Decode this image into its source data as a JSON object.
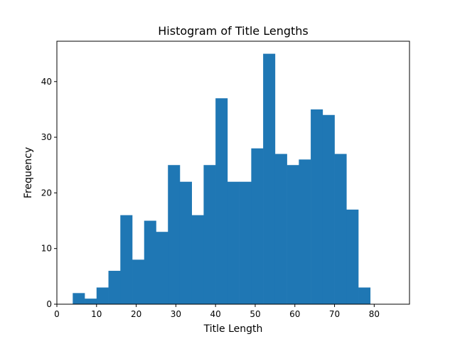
{
  "chart_data": {
    "type": "bar",
    "title": "Histogram of Title Lengths",
    "xlabel": "Title Length",
    "ylabel": "Frequency",
    "xlim": [
      0,
      88.9
    ],
    "ylim": [
      0,
      47.25
    ],
    "x_ticks": [
      0,
      10,
      20,
      30,
      40,
      50,
      60,
      70,
      80
    ],
    "y_ticks": [
      0,
      10,
      20,
      30,
      40
    ],
    "bar_color": "#1f77b4",
    "bins": [
      {
        "x0": 4.0,
        "x1": 7.0,
        "value": 2
      },
      {
        "x0": 7.0,
        "x1": 10.0,
        "value": 1
      },
      {
        "x0": 10.0,
        "x1": 13.0,
        "value": 3
      },
      {
        "x0": 13.0,
        "x1": 16.0,
        "value": 6
      },
      {
        "x0": 16.0,
        "x1": 19.0,
        "value": 16
      },
      {
        "x0": 19.0,
        "x1": 22.0,
        "value": 8
      },
      {
        "x0": 22.0,
        "x1": 25.0,
        "value": 15
      },
      {
        "x0": 25.0,
        "x1": 28.0,
        "value": 13
      },
      {
        "x0": 28.0,
        "x1": 31.0,
        "value": 25
      },
      {
        "x0": 31.0,
        "x1": 34.0,
        "value": 22
      },
      {
        "x0": 34.0,
        "x1": 37.0,
        "value": 16
      },
      {
        "x0": 37.0,
        "x1": 40.0,
        "value": 25
      },
      {
        "x0": 40.0,
        "x1": 43.0,
        "value": 37
      },
      {
        "x0": 43.0,
        "x1": 46.0,
        "value": 22
      },
      {
        "x0": 46.0,
        "x1": 49.0,
        "value": 22
      },
      {
        "x0": 49.0,
        "x1": 52.0,
        "value": 28
      },
      {
        "x0": 52.0,
        "x1": 55.0,
        "value": 45
      },
      {
        "x0": 55.0,
        "x1": 58.0,
        "value": 27
      },
      {
        "x0": 58.0,
        "x1": 61.0,
        "value": 25
      },
      {
        "x0": 61.0,
        "x1": 64.0,
        "value": 26
      },
      {
        "x0": 64.0,
        "x1": 67.0,
        "value": 35
      },
      {
        "x0": 67.0,
        "x1": 70.0,
        "value": 34
      },
      {
        "x0": 70.0,
        "x1": 73.0,
        "value": 27
      },
      {
        "x0": 73.0,
        "x1": 76.0,
        "value": 17
      },
      {
        "x0": 76.0,
        "x1": 79.0,
        "value": 3
      }
    ]
  }
}
